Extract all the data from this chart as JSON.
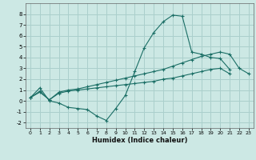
{
  "xlabel": "Humidex (Indice chaleur)",
  "background_color": "#cce8e4",
  "grid_color": "#aacfcc",
  "line_color": "#1a6e65",
  "xlim": [
    -0.5,
    23.5
  ],
  "ylim": [
    -2.5,
    9.0
  ],
  "xticks": [
    0,
    1,
    2,
    3,
    4,
    5,
    6,
    7,
    8,
    9,
    10,
    11,
    12,
    13,
    14,
    15,
    16,
    17,
    18,
    19,
    20,
    21,
    22,
    23
  ],
  "yticks": [
    -2,
    -1,
    0,
    1,
    2,
    3,
    4,
    5,
    6,
    7,
    8
  ],
  "series": [
    [
      0.3,
      1.2,
      0.0,
      -0.2,
      -0.6,
      -0.7,
      -0.8,
      -1.4,
      -1.8,
      -0.7,
      0.5,
      2.7,
      4.9,
      6.3,
      7.3,
      7.9,
      7.8,
      4.5,
      4.3,
      4.0,
      3.9,
      2.9
    ],
    [
      0.3,
      0.9,
      0.1,
      0.7,
      0.9,
      1.0,
      1.1,
      1.2,
      1.3,
      1.4,
      1.5,
      1.6,
      1.7,
      1.8,
      2.0,
      2.1,
      2.3,
      2.5,
      2.7,
      2.9,
      3.0,
      2.5
    ],
    [
      0.3,
      0.8,
      0.1,
      0.8,
      1.0,
      1.1,
      1.3,
      1.5,
      1.7,
      1.9,
      2.1,
      2.3,
      2.5,
      2.7,
      2.9,
      3.2,
      3.5,
      3.8,
      4.1,
      4.3,
      4.5,
      4.3,
      3.0,
      2.5
    ]
  ],
  "series_x": [
    [
      0,
      1,
      2,
      3,
      4,
      5,
      6,
      7,
      8,
      9,
      10,
      11,
      12,
      13,
      14,
      15,
      16,
      17,
      18,
      19,
      20,
      21
    ],
    [
      0,
      1,
      2,
      3,
      4,
      5,
      6,
      7,
      8,
      9,
      10,
      11,
      12,
      13,
      14,
      15,
      16,
      17,
      18,
      19,
      20,
      21
    ],
    [
      0,
      1,
      2,
      3,
      4,
      5,
      6,
      7,
      8,
      9,
      10,
      11,
      12,
      13,
      14,
      15,
      16,
      17,
      18,
      19,
      20,
      21,
      22,
      23
    ]
  ]
}
